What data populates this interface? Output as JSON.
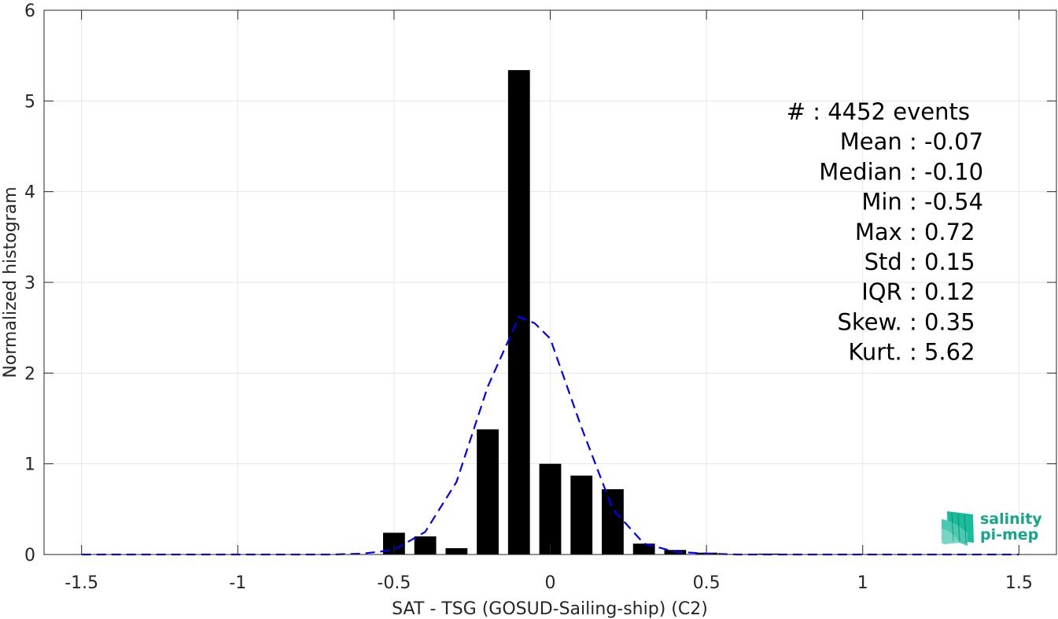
{
  "chart_data": {
    "type": "bar",
    "xlabel": "SAT - TSG (GOSUD-Sailing-ship) (C2)",
    "ylabel": "Normalized histogram",
    "xlim": [
      -1.62,
      1.62
    ],
    "ylim": [
      0,
      6
    ],
    "xticks": [
      -1.5,
      -1,
      -0.5,
      0,
      0.5,
      1,
      1.5
    ],
    "xtick_labels": [
      "-1.5",
      "-1",
      "-0.5",
      "0",
      "0.5",
      "1",
      "1.5"
    ],
    "yticks": [
      0,
      1,
      2,
      3,
      4,
      5,
      6
    ],
    "ytick_labels": [
      "0",
      "1",
      "2",
      "3",
      "4",
      "5",
      "6"
    ],
    "grid": true,
    "bar_color": "#000000",
    "fit_color": "#0000ff",
    "bar_width": 0.07,
    "bars": {
      "x": [
        -0.5,
        -0.4,
        -0.3,
        -0.2,
        -0.1,
        0.0,
        0.1,
        0.2,
        0.3,
        0.4,
        0.5,
        0.6,
        0.7
      ],
      "values": [
        0.24,
        0.2,
        0.07,
        1.38,
        5.34,
        1.0,
        0.87,
        0.72,
        0.12,
        0.05,
        0.02,
        0.005,
        0.01
      ]
    },
    "fit": {
      "style": "dashed",
      "x": [
        -1.5,
        -1.4,
        -1.3,
        -1.2,
        -1.1,
        -1.0,
        -0.9,
        -0.8,
        -0.7,
        -0.6,
        -0.5,
        -0.4,
        -0.3,
        -0.2,
        -0.1,
        -0.05,
        0.0,
        0.1,
        0.2,
        0.3,
        0.4,
        0.5,
        0.6,
        0.7,
        0.8,
        0.9,
        1.0,
        1.1,
        1.2,
        1.3,
        1.4,
        1.5
      ],
      "y": [
        0,
        0,
        0,
        0,
        0,
        0,
        0,
        0,
        0,
        0.01,
        0.05,
        0.25,
        0.8,
        1.85,
        2.62,
        2.55,
        2.38,
        1.4,
        0.5,
        0.12,
        0.03,
        0.01,
        0,
        0,
        0,
        0,
        0,
        0,
        0,
        0,
        0,
        0
      ]
    },
    "stats": [
      {
        "label": "#  : 4452 events"
      },
      {
        "label": "Mean : -0.07"
      },
      {
        "label": "Median : -0.10"
      },
      {
        "label": "Min : -0.54"
      },
      {
        "label": "Max : 0.72"
      },
      {
        "label": "Std : 0.15"
      },
      {
        "label": "IQR : 0.12"
      },
      {
        "label": "Skew. : 0.35"
      },
      {
        "label": "Kurt. : 5.62"
      }
    ]
  },
  "logo": {
    "line1": "salinity",
    "line2": "pi-mep",
    "color": "#17a589"
  }
}
